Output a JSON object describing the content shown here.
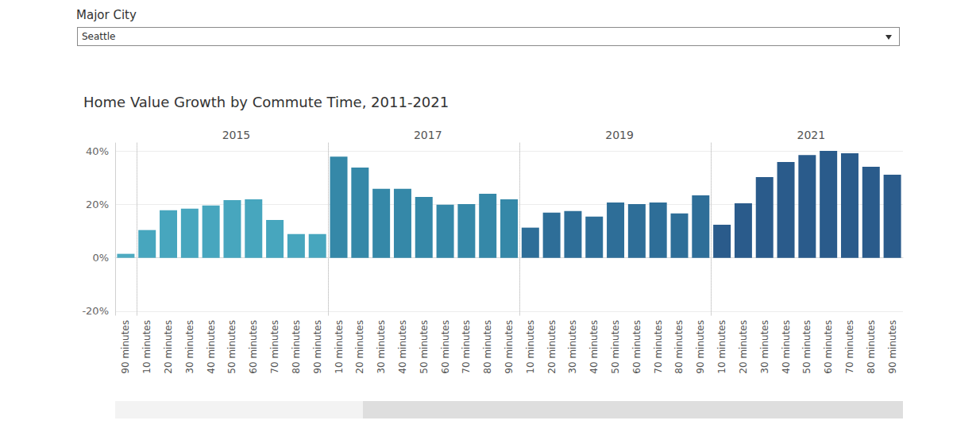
{
  "header": {
    "filter_label": "Major City",
    "filter_value": "Seattle"
  },
  "title": "Home Value Growth by Commute Time, 2011-2021",
  "chart_data": [
    {
      "type": "bar",
      "categories": [
        "90 minutes"
      ],
      "values": [
        1.5
      ],
      "color": "#4eabc1",
      "ylim": [
        -21.5,
        43
      ],
      "yticks": [
        {
          "value": -20,
          "label": "-20%"
        },
        {
          "value": 0,
          "label": "0%"
        },
        {
          "value": 20,
          "label": "20%"
        },
        {
          "value": 40,
          "label": "40%"
        }
      ],
      "grid": true
    },
    {
      "type": "bar",
      "title": "2015",
      "categories": [
        "10 minutes",
        "20 minutes",
        "30 minutes",
        "40 minutes",
        "50 minutes",
        "60 minutes",
        "70 minutes",
        "80 minutes",
        "90 minutes"
      ],
      "values": [
        10.4,
        17.8,
        18.4,
        19.6,
        21.6,
        21.9,
        14.2,
        8.9,
        8.9
      ],
      "color": "#47a6be",
      "ylim": [
        -21.5,
        43
      ],
      "yticks": [
        {
          "value": -20,
          "label": "-20%"
        },
        {
          "value": 0,
          "label": "0%"
        },
        {
          "value": 20,
          "label": "20%"
        },
        {
          "value": 40,
          "label": "40%"
        }
      ],
      "grid": true
    },
    {
      "type": "bar",
      "title": "2017",
      "categories": [
        "10 minutes",
        "20 minutes",
        "30 minutes",
        "40 minutes",
        "50 minutes",
        "60 minutes",
        "70 minutes",
        "80 minutes",
        "90 minutes"
      ],
      "values": [
        37.9,
        33.8,
        25.8,
        25.8,
        22.8,
        19.9,
        20.1,
        24.0,
        21.9
      ],
      "color": "#3588a8",
      "ylim": [
        -21.5,
        43
      ],
      "yticks": [
        {
          "value": -20,
          "label": "-20%"
        },
        {
          "value": 0,
          "label": "0%"
        },
        {
          "value": 20,
          "label": "20%"
        },
        {
          "value": 40,
          "label": "40%"
        }
      ],
      "grid": true
    },
    {
      "type": "bar",
      "title": "2019",
      "categories": [
        "10 minutes",
        "20 minutes",
        "30 minutes",
        "40 minutes",
        "50 minutes",
        "60 minutes",
        "70 minutes",
        "80 minutes",
        "90 minutes"
      ],
      "values": [
        11.3,
        16.9,
        17.5,
        15.4,
        20.7,
        20.1,
        20.7,
        16.6,
        23.4
      ],
      "color": "#2e6e98",
      "ylim": [
        -21.5,
        43
      ],
      "yticks": [
        {
          "value": -20,
          "label": "-20%"
        },
        {
          "value": 0,
          "label": "0%"
        },
        {
          "value": 20,
          "label": "20%"
        },
        {
          "value": 40,
          "label": "40%"
        }
      ],
      "grid": true
    },
    {
      "type": "bar",
      "title": "2021",
      "categories": [
        "10 minutes",
        "20 minutes",
        "30 minutes",
        "40 minutes",
        "50 minutes",
        "60 minutes",
        "70 minutes",
        "80 minutes",
        "90 minutes"
      ],
      "values": [
        12.4,
        20.4,
        30.2,
        35.9,
        38.5,
        40.0,
        39.1,
        34.1,
        31.1
      ],
      "color": "#2a5b8b",
      "ylim": [
        -21.5,
        43
      ],
      "yticks": [
        {
          "value": -20,
          "label": "-20%"
        },
        {
          "value": 0,
          "label": "0%"
        },
        {
          "value": 20,
          "label": "20%"
        },
        {
          "value": 40,
          "label": "40%"
        }
      ],
      "grid": true
    }
  ]
}
